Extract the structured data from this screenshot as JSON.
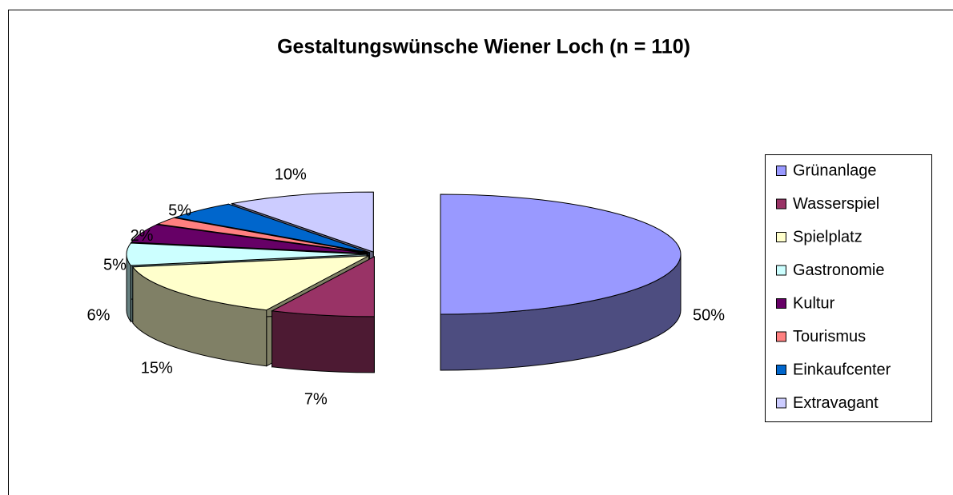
{
  "chart_data": {
    "type": "pie3d",
    "title": "Gestaltungswünsche Wiener Loch (n = 110)",
    "categories": [
      "Grünanlage",
      "Wasserspiel",
      "Spielplatz",
      "Gastronomie",
      "Kultur",
      "Tourismus",
      "Einkaufcenter",
      "Extravagant"
    ],
    "values": [
      50,
      7,
      15,
      6,
      5,
      2,
      5,
      10
    ],
    "value_labels": [
      "50%",
      "7%",
      "15%",
      "6%",
      "5%",
      "2%",
      "5%",
      "10%"
    ],
    "colors": [
      "#9999ff",
      "#993366",
      "#ffffcc",
      "#ccffff",
      "#660066",
      "#ff8080",
      "#0066cc",
      "#ccccff"
    ],
    "legend": "right"
  }
}
